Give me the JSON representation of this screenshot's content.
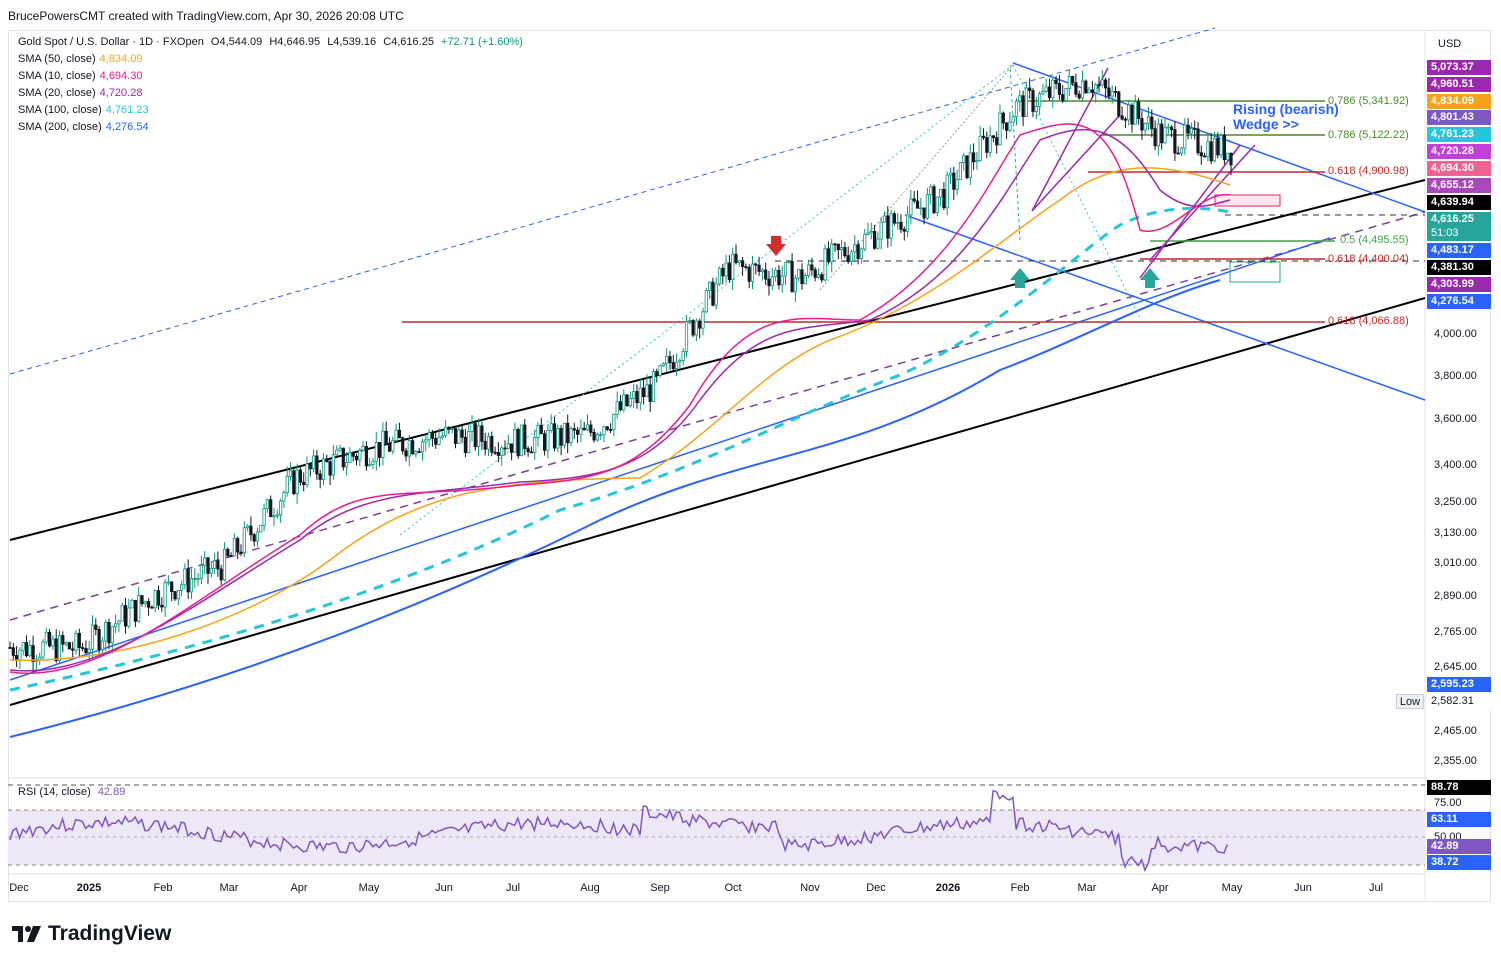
{
  "credit": "BrucePowersCMT created with TradingView.com, Apr 30, 2026 20:08 UTC",
  "currency": "USD",
  "ohlc_title": "Gold Spot / U.S. Dollar · 1D · FXOpen",
  "ohlc": {
    "o": "O4,544.09",
    "h": "H4,646.95",
    "l": "L4,539.16",
    "c": "C4,616.25",
    "chg": "+72.71 (+1.60%)"
  },
  "legend": [
    {
      "label": "SMA (50, close)",
      "value": "4,834.09",
      "color": "#f7a21b"
    },
    {
      "label": "SMA (10, close)",
      "value": "4,694.30",
      "color": "#e91e8c"
    },
    {
      "label": "SMA (20, close)",
      "value": "4,720.28",
      "color": "#9c27b0"
    },
    {
      "label": "SMA (100, close)",
      "value": "4,761.23",
      "color": "#26c6da"
    },
    {
      "label": "SMA (200, close)",
      "value": "4,276.54",
      "color": "#2962ff"
    }
  ],
  "price_ticks": [
    "4,000.00",
    "3,800.00",
    "3,600.00",
    "3,400.00",
    "3,250.00",
    "3,130.00",
    "3,010.00",
    "2,890.00",
    "2,765.00",
    "2,645.00",
    "2,465.00",
    "2,355.00"
  ],
  "price_tags": [
    {
      "text": "5,073.37",
      "color": "#9c27b0"
    },
    {
      "text": "4,960.51",
      "color": "#9c27b0"
    },
    {
      "text": "4,834.09",
      "color": "#f7a21b"
    },
    {
      "text": "4,801.43",
      "color": "#7e57c2"
    },
    {
      "text": "4,761.23",
      "color": "#26c6da"
    },
    {
      "text": "4,720.28",
      "color": "#c23fd8"
    },
    {
      "text": "4,694.30",
      "color": "#f06292"
    },
    {
      "text": "4,655.12",
      "color": "#ab47bc"
    },
    {
      "text": "4,639.94",
      "color": "#000000"
    },
    {
      "text": "4,616.25",
      "color": "#26a69a"
    },
    {
      "text": "51:03",
      "color": "#26a69a"
    },
    {
      "text": "4,483.17",
      "color": "#2962ff"
    },
    {
      "text": "4,381.30",
      "color": "#000000"
    },
    {
      "text": "4,303.99",
      "color": "#9c27b0"
    },
    {
      "text": "4,276.54",
      "color": "#2962ff"
    },
    {
      "text": "2,595.23",
      "color": "#2962ff"
    },
    {
      "text": "2,582.31",
      "color": "#ffffff"
    }
  ],
  "low_label": "Low",
  "fib_labels": [
    {
      "text": "0.786 (5,341.92)",
      "color": "#4c8a2a"
    },
    {
      "text": "0.786 (5,122.22)",
      "color": "#4c8a2a"
    },
    {
      "text": "0.618 (4,900.98)",
      "color": "#c62828"
    },
    {
      "text": "0.5 (4,495.55)",
      "color": "#43a047"
    },
    {
      "text": "0.618 (4,400.04)",
      "color": "#c62828"
    },
    {
      "text": "0.618 (4,066.88)",
      "color": "#c62828"
    }
  ],
  "annotation": [
    "Rising (bearish)",
    "Wedge >>"
  ],
  "rsi": {
    "label": "RSI (14, close)",
    "value": "42.89",
    "ticks": [
      "75.00",
      "50.00"
    ],
    "tags": [
      {
        "text": "88.78",
        "color": "#000000"
      },
      {
        "text": "63.11",
        "color": "#2962ff"
      },
      {
        "text": "42.89",
        "color": "#7e57c2"
      },
      {
        "text": "38.72",
        "color": "#2962ff"
      }
    ]
  },
  "x_labels": [
    "Dec",
    "2025",
    "Feb",
    "Mar",
    "Apr",
    "May",
    "Jun",
    "Jul",
    "Aug",
    "Sep",
    "Oct",
    "Nov",
    "Dec",
    "2026",
    "Feb",
    "Mar",
    "Apr",
    "May",
    "Jun",
    "Jul"
  ],
  "brand": "TradingView",
  "chart_data": {
    "type": "line",
    "title": "Gold Spot / U.S. Dollar · 1D · FXOpen",
    "ylabel": "USD",
    "ylim": [
      2300,
      5100
    ],
    "scale": "log",
    "x": [
      "2024-12",
      "2025-01",
      "2025-02",
      "2025-03",
      "2025-04",
      "2025-05",
      "2025-06",
      "2025-07",
      "2025-08",
      "2025-09",
      "2025-10",
      "2025-11",
      "2025-12",
      "2026-01",
      "2026-02",
      "2026-03",
      "2026-04",
      "2026-04-30"
    ],
    "series": [
      {
        "name": "Gold Spot / U.S. Dollar",
        "values": [
          2640,
          2640,
          2800,
          2900,
          3200,
          3300,
          3350,
          3330,
          3350,
          3550,
          4050,
          4000,
          4200,
          4400,
          4850,
          5000,
          4700,
          4616.25
        ]
      }
    ],
    "last": {
      "open": 4544.09,
      "high": 4646.95,
      "low": 4539.16,
      "close": 4616.25,
      "change": 72.71,
      "change_pct": 1.6
    }
  }
}
